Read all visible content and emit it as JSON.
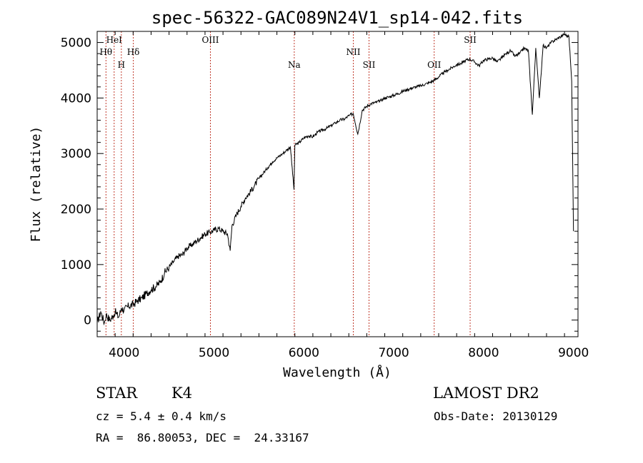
{
  "chart_data": {
    "type": "line",
    "title": "spec-56322-GAC089N24V1_sp14-042.fits",
    "xlabel": "Wavelength (Å)",
    "ylabel": "Flux (relative)",
    "xlim": [
      3700,
      9050
    ],
    "ylim": [
      -300,
      5200
    ],
    "xticks": [
      4000,
      5000,
      6000,
      7000,
      8000,
      9000
    ],
    "yticks": [
      0,
      1000,
      2000,
      3000,
      4000,
      5000
    ],
    "spectral_lines": [
      {
        "label": "Hθ",
        "x": 3798,
        "level": 1
      },
      {
        "label": "HeI",
        "x": 3889,
        "level": 0
      },
      {
        "label": "H",
        "x": 3969,
        "level": 2
      },
      {
        "label": "Hδ",
        "x": 4102,
        "level": 1
      },
      {
        "label": "OIII",
        "x": 4960,
        "level": 0
      },
      {
        "label": "Na",
        "x": 5893,
        "level": 2
      },
      {
        "label": "NII",
        "x": 6550,
        "level": 1
      },
      {
        "label": "SII",
        "x": 6725,
        "level": 2
      },
      {
        "label": "OII",
        "x": 7450,
        "level": 2
      },
      {
        "label": "SII",
        "x": 7850,
        "level": 0
      }
    ],
    "series": [
      {
        "color": "#000000",
        "x": [
          3700,
          3740,
          3780,
          3800,
          3840,
          3880,
          3900,
          3940,
          3970,
          4000,
          4050,
          4100,
          4150,
          4200,
          4250,
          4300,
          4350,
          4400,
          4450,
          4500,
          4550,
          4600,
          4650,
          4700,
          4750,
          4800,
          4850,
          4900,
          4950,
          5000,
          5050,
          5100,
          5150,
          5180,
          5200,
          5250,
          5300,
          5350,
          5400,
          5450,
          5500,
          5550,
          5600,
          5650,
          5700,
          5750,
          5800,
          5850,
          5890,
          5900,
          5950,
          6000,
          6050,
          6100,
          6150,
          6200,
          6250,
          6300,
          6350,
          6400,
          6450,
          6500,
          6550,
          6600,
          6650,
          6700,
          6750,
          6800,
          6850,
          6900,
          6950,
          7000,
          7050,
          7100,
          7150,
          7200,
          7250,
          7300,
          7350,
          7400,
          7450,
          7500,
          7550,
          7600,
          7650,
          7700,
          7750,
          7800,
          7850,
          7900,
          7950,
          8000,
          8050,
          8100,
          8150,
          8200,
          8250,
          8300,
          8350,
          8400,
          8450,
          8498,
          8542,
          8580,
          8620,
          8662,
          8700,
          8750,
          8800,
          8850,
          8900,
          8950,
          8980,
          9000
        ],
        "values": [
          -50,
          150,
          -50,
          100,
          0,
          80,
          150,
          50,
          220,
          180,
          250,
          280,
          350,
          400,
          480,
          550,
          600,
          680,
          850,
          950,
          1050,
          1150,
          1180,
          1300,
          1350,
          1420,
          1480,
          1550,
          1580,
          1620,
          1650,
          1600,
          1550,
          1250,
          1700,
          1900,
          2050,
          2200,
          2300,
          2420,
          2550,
          2650,
          2750,
          2850,
          2920,
          2980,
          3050,
          3120,
          2350,
          3150,
          3200,
          3280,
          3320,
          3300,
          3380,
          3420,
          3450,
          3500,
          3550,
          3600,
          3620,
          3680,
          3720,
          3350,
          3780,
          3850,
          3900,
          3920,
          3950,
          4000,
          4020,
          4050,
          4080,
          4120,
          4150,
          4180,
          4200,
          4220,
          4250,
          4280,
          4320,
          4380,
          4450,
          4500,
          4550,
          4600,
          4620,
          4680,
          4700,
          4650,
          4580,
          4680,
          4700,
          4720,
          4650,
          4720,
          4800,
          4850,
          4750,
          4800,
          4900,
          4850,
          3700,
          4900,
          4000,
          4950,
          4900,
          5000,
          5050,
          5100,
          5150,
          5100,
          4300,
          1600
        ]
      }
    ]
  },
  "footer": {
    "object_class": "STAR",
    "subclass": "K4",
    "survey": "LAMOST DR2",
    "redshift": "cz = 5.4 ± 0.4 km/s",
    "obs_date": "Obs-Date: 20130129",
    "coords": "RA =  86.80053, DEC =  24.33167"
  }
}
